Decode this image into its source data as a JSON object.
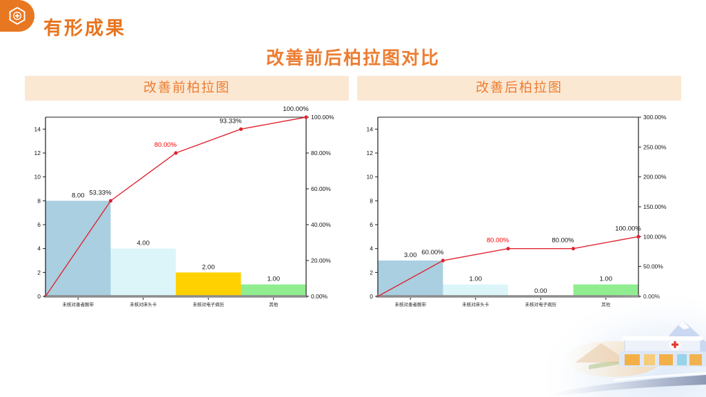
{
  "header": {
    "section_title": "有形成果"
  },
  "title": "改善前后柏拉图对比",
  "panels": [
    {
      "header": "改善前柏拉图"
    },
    {
      "header": "改善后柏拉图"
    }
  ],
  "colors": {
    "accent_orange": "#ED7D31",
    "badge_orange": "#E87722",
    "panel_header_bg": "#FBE8D3",
    "pareto_line_red": "#E02430",
    "highlight_label_red": "#FF0000",
    "axis_baseline_gray": "#8C8C8C"
  },
  "chart_data": [
    {
      "type": "bar",
      "subtype": "pareto",
      "title": "改善前柏拉图",
      "categories": [
        "未核对患者腕带",
        "未核对床头卡",
        "未核对电子病历",
        "其他"
      ],
      "values": [
        8,
        4,
        2,
        1
      ],
      "bar_labels": [
        "8.00",
        "4.00",
        "2.00",
        "1.00"
      ],
      "bar_colors": [
        "#A9CFE0",
        "#DCF5F8",
        "#FFD100",
        "#90EE90"
      ],
      "series": [
        {
          "name": "frequency",
          "values": [
            8,
            4,
            2,
            1
          ]
        },
        {
          "name": "cumulative_percent",
          "values": [
            53.33,
            80.0,
            93.33,
            100.0
          ]
        }
      ],
      "cumulative_labels": [
        "53.33%",
        "80.00%",
        "93.33%",
        "100.00%"
      ],
      "highlight_index": 1,
      "left_axis": {
        "min": 0,
        "max": 15,
        "ticks": [
          0,
          2,
          4,
          6,
          8,
          10,
          12,
          14
        ]
      },
      "right_axis": {
        "min": 0,
        "max": 100,
        "tick_values": [
          0,
          20,
          40,
          60,
          80,
          100
        ],
        "tick_labels": [
          "0.00%",
          "20.00%",
          "40.00%",
          "60.00%",
          "80.00%",
          "100.00%"
        ]
      },
      "grid": false,
      "legend": "none"
    },
    {
      "type": "bar",
      "subtype": "pareto",
      "title": "改善后柏拉图",
      "categories": [
        "未核对患者腕带",
        "未核对床头卡",
        "未核对电子病历",
        "其他"
      ],
      "values": [
        3,
        1,
        0,
        1
      ],
      "bar_labels": [
        "3.00",
        "1.00",
        "0.00",
        "1.00"
      ],
      "bar_colors": [
        "#A9CFE0",
        "#DCF5F8",
        "#FFD100",
        "#90EE90"
      ],
      "series": [
        {
          "name": "frequency",
          "values": [
            3,
            1,
            0,
            1
          ]
        },
        {
          "name": "cumulative_percent",
          "values": [
            60.0,
            80.0,
            80.0,
            100.0
          ]
        }
      ],
      "cumulative_labels": [
        "60.00%",
        "80.00%",
        "80.00%",
        "100.00%"
      ],
      "highlight_index": 1,
      "left_axis": {
        "min": 0,
        "max": 15,
        "ticks": [
          0,
          2,
          4,
          6,
          8,
          10,
          12,
          14
        ]
      },
      "right_axis": {
        "min": 0,
        "max": 300,
        "tick_values": [
          0,
          50,
          100,
          150,
          200,
          250,
          300
        ],
        "tick_labels": [
          "0.00%",
          "50.00%",
          "100.00%",
          "150.00%",
          "200.00%",
          "250.00%",
          "300.00%"
        ]
      },
      "grid": false,
      "legend": "none"
    }
  ]
}
